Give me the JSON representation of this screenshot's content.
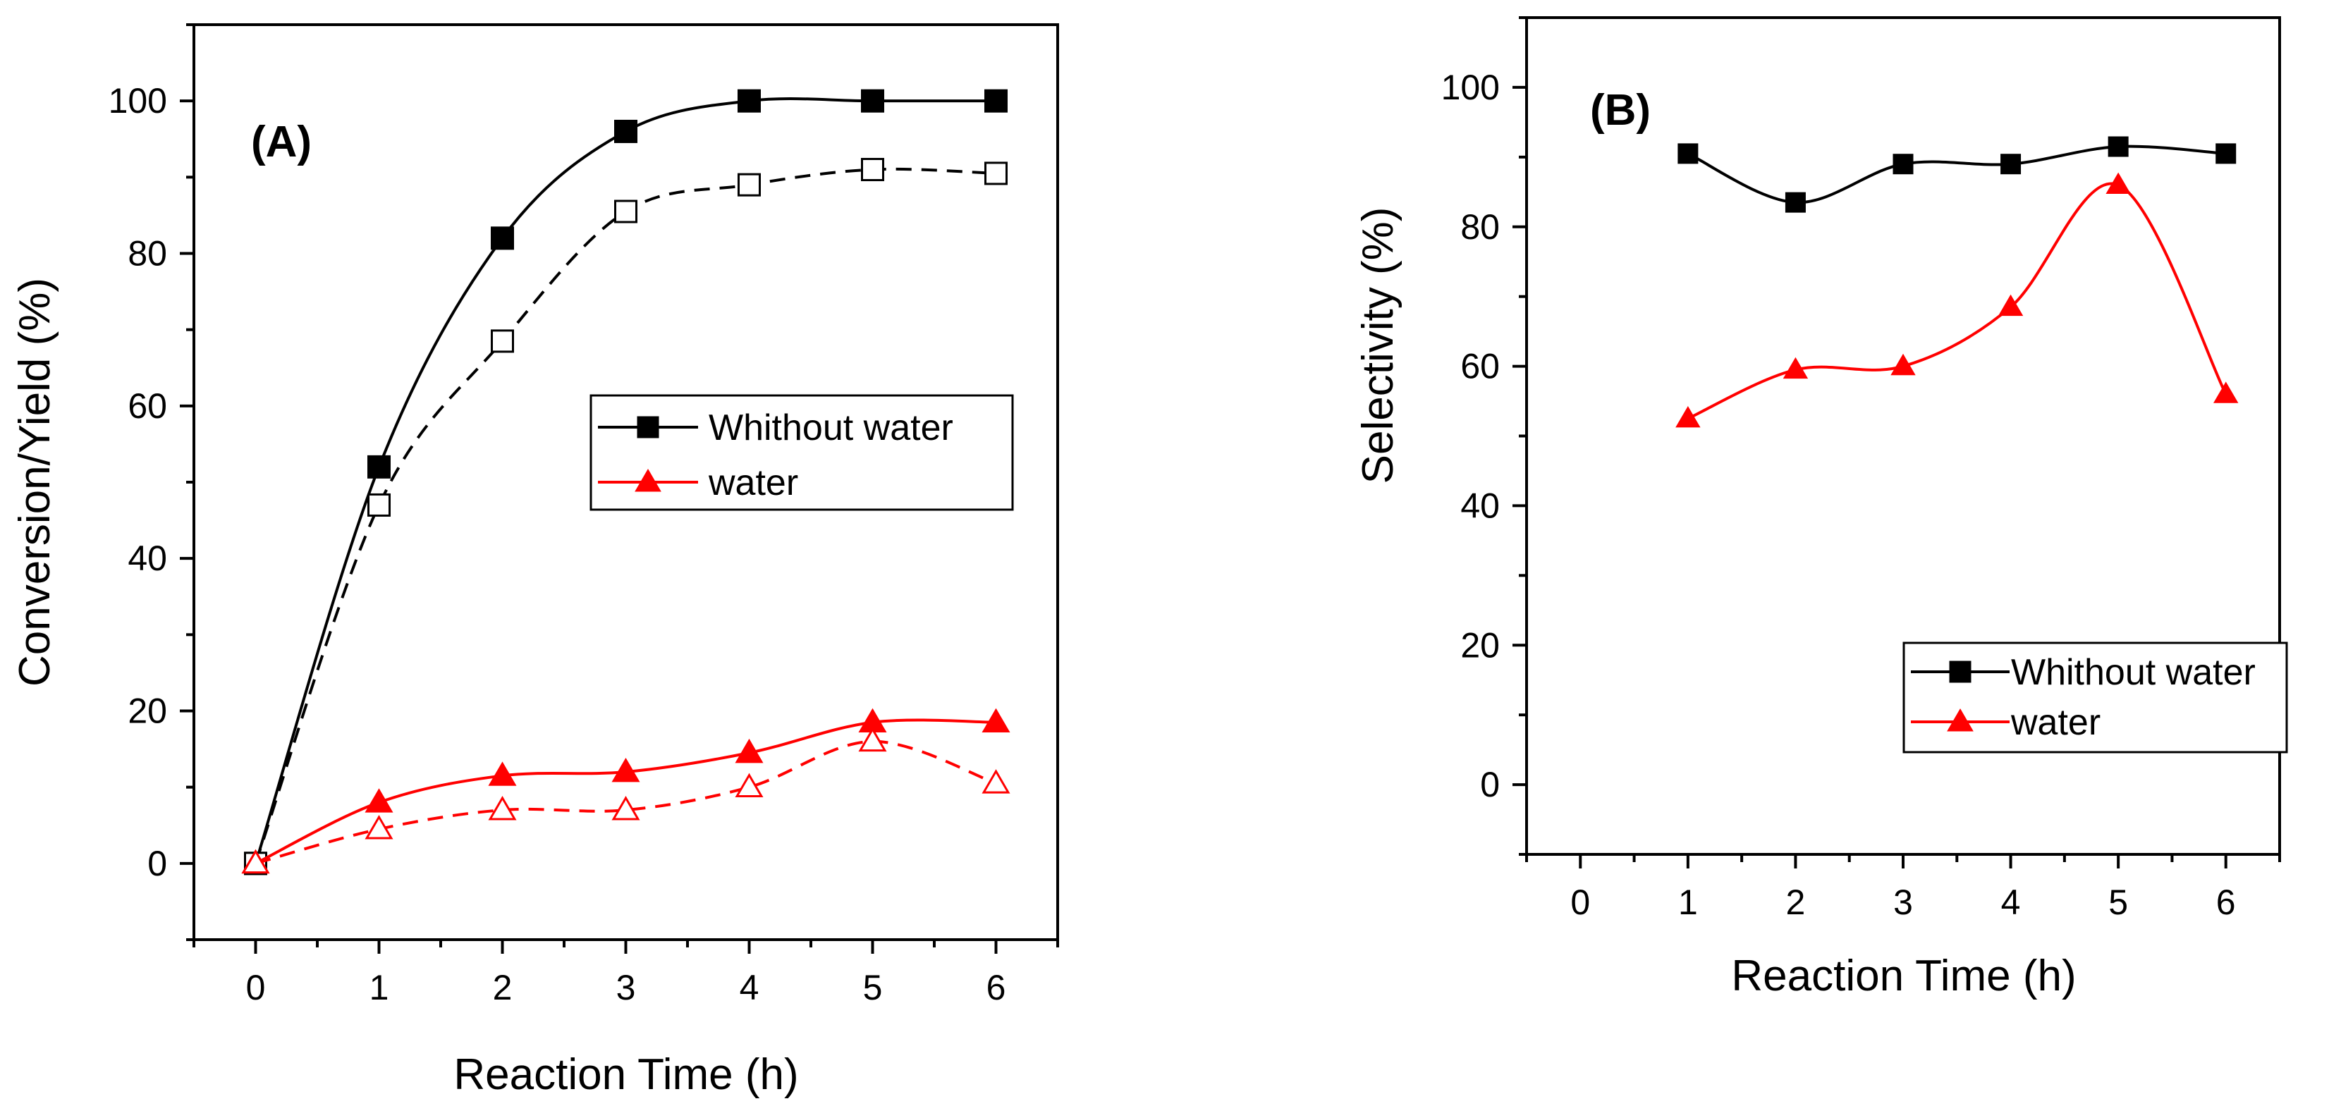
{
  "colors": {
    "black_series": "#000000",
    "red_series": "#ff0000",
    "axis": "#000000",
    "background": "#ffffff"
  },
  "chart_data": [
    {
      "type": "line",
      "panel_label": "(A)",
      "xlabel": "Reaction Time (h)",
      "ylabel": "Conversion/Yield (%)",
      "xlim": [
        -0.5,
        6.5
      ],
      "ylim": [
        -10,
        110
      ],
      "xticks": [
        "0",
        "1",
        "2",
        "3",
        "4",
        "5",
        "6"
      ],
      "yticks": [
        "0",
        "20",
        "40",
        "60",
        "80",
        "100"
      ],
      "legend": {
        "position": "center-right",
        "entries": [
          "Whithout water",
          "water"
        ]
      },
      "series": [
        {
          "name": "Whithout water",
          "metric": "conversion",
          "marker": "filled-square",
          "line": "solid",
          "color": "#000000",
          "x": [
            0,
            1,
            2,
            3,
            4,
            5,
            6
          ],
          "y": [
            0,
            52,
            82,
            96,
            100,
            100,
            100
          ]
        },
        {
          "name": "Whithout water",
          "metric": "yield",
          "marker": "open-square",
          "line": "dashed",
          "color": "#000000",
          "x": [
            0,
            1,
            2,
            3,
            4,
            5,
            6
          ],
          "y": [
            0,
            47,
            68.5,
            85.5,
            89,
            91,
            90.5
          ]
        },
        {
          "name": "water",
          "metric": "conversion",
          "marker": "filled-triangle",
          "line": "solid",
          "color": "#ff0000",
          "x": [
            0,
            1,
            2,
            3,
            4,
            5,
            6
          ],
          "y": [
            0,
            8,
            11.5,
            12,
            14.5,
            18.5,
            18.5
          ]
        },
        {
          "name": "water",
          "metric": "yield",
          "marker": "open-triangle",
          "line": "dashed",
          "color": "#ff0000",
          "x": [
            0,
            1,
            2,
            3,
            4,
            5,
            6
          ],
          "y": [
            0,
            4.5,
            7,
            7,
            10,
            16,
            10.5
          ]
        }
      ]
    },
    {
      "type": "line",
      "panel_label": "(B)",
      "xlabel": "Reaction Time (h)",
      "ylabel": "Selectivity (%)",
      "xlim": [
        -0.5,
        6.5
      ],
      "ylim": [
        -10,
        110
      ],
      "xticks": [
        "0",
        "1",
        "2",
        "3",
        "4",
        "5",
        "6"
      ],
      "yticks": [
        "0",
        "20",
        "40",
        "60",
        "80",
        "100"
      ],
      "legend": {
        "position": "lower-right",
        "entries": [
          "Whithout water",
          "water"
        ]
      },
      "series": [
        {
          "name": "Whithout water",
          "marker": "filled-square",
          "line": "solid",
          "color": "#000000",
          "x": [
            1,
            2,
            3,
            4,
            5,
            6
          ],
          "y": [
            90.5,
            83.5,
            89,
            89,
            91.5,
            90.5
          ]
        },
        {
          "name": "water",
          "marker": "filled-triangle",
          "line": "solid",
          "color": "#ff0000",
          "x": [
            1,
            2,
            3,
            4,
            5,
            6
          ],
          "y": [
            52.5,
            59.5,
            60,
            68.5,
            86,
            56
          ]
        }
      ]
    }
  ]
}
